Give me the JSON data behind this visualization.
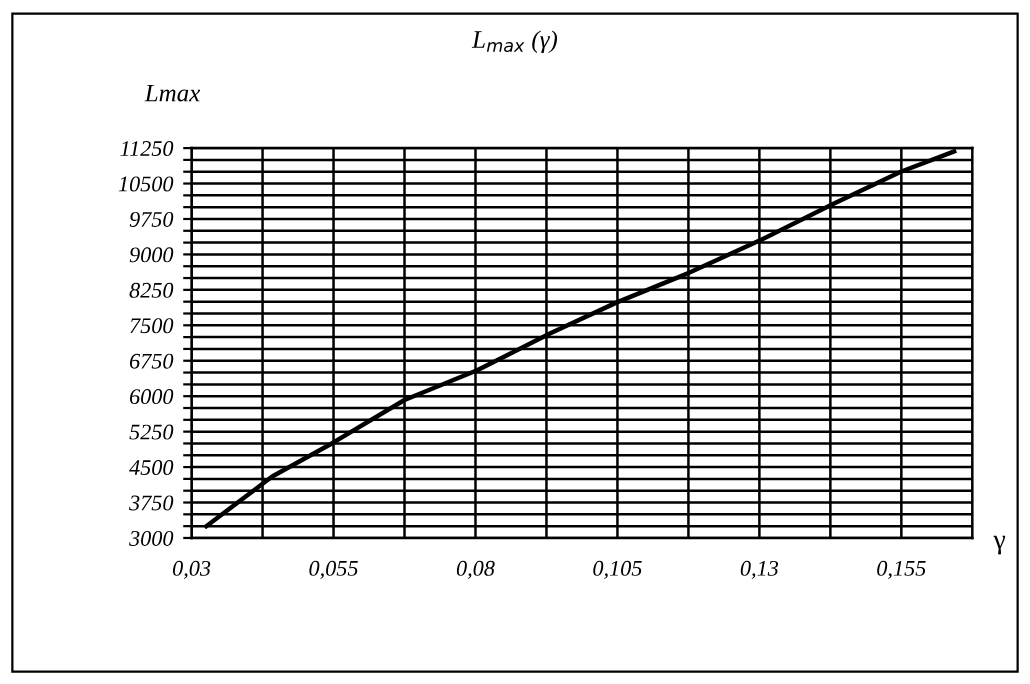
{
  "chart_data": {
    "type": "line",
    "title": "L$_{max}$ (γ)",
    "ylabel": "Lmax",
    "xlabel": "γ",
    "x": [
      0.0326,
      0.0442,
      0.0547,
      0.0675,
      0.0803,
      0.0932,
      0.1048,
      0.1176,
      0.1305,
      0.1427,
      0.1549,
      0.1643
    ],
    "series": [
      {
        "color": "#000000",
        "values": [
          3250,
          4300,
          5000,
          5920,
          6550,
          7330,
          7980,
          8610,
          9320,
          10050,
          10750,
          11180
        ]
      }
    ],
    "xlim": [
      0.03,
      0.1675
    ],
    "xticks": [
      {
        "value": 0.03,
        "label": "0,03"
      },
      {
        "value": 0.0425,
        "label": null
      },
      {
        "value": 0.055,
        "label": "0,055"
      },
      {
        "value": 0.0675,
        "label": null
      },
      {
        "value": 0.08,
        "label": "0,08"
      },
      {
        "value": 0.0925,
        "label": null
      },
      {
        "value": 0.105,
        "label": "0,105"
      },
      {
        "value": 0.1175,
        "label": null
      },
      {
        "value": 0.13,
        "label": "0,13"
      },
      {
        "value": 0.1425,
        "label": null
      },
      {
        "value": 0.155,
        "label": "0,155"
      }
    ],
    "ylim": [
      3000,
      11250
    ],
    "yticks": [
      3000,
      {
        "value": 3250,
        "label": null
      },
      {
        "value": 3500,
        "label": null
      },
      3750,
      {
        "value": 4000,
        "label": null
      },
      {
        "value": 4250,
        "label": null
      },
      4500,
      {
        "value": 4750,
        "label": null
      },
      {
        "value": 5000,
        "label": null
      },
      5250,
      {
        "value": 5500,
        "label": null
      },
      {
        "value": 5750,
        "label": null
      },
      6000,
      {
        "value": 6250,
        "label": null
      },
      {
        "value": 6500,
        "label": null
      },
      6750,
      {
        "value": 7000,
        "label": null
      },
      {
        "value": 7250,
        "label": null
      },
      7500,
      {
        "value": 7750,
        "label": null
      },
      {
        "value": 8000,
        "label": null
      },
      8250,
      {
        "value": 8500,
        "label": null
      },
      {
        "value": 8750,
        "label": null
      },
      9000,
      {
        "value": 9250,
        "label": null
      },
      {
        "value": 9500,
        "label": null
      },
      9750,
      {
        "value": 10000,
        "label": null
      },
      {
        "value": 10250,
        "label": null
      },
      10500,
      {
        "value": 10750,
        "label": null
      },
      {
        "value": 11000,
        "label": null
      },
      11250
    ],
    "grid": true,
    "marker": "none",
    "line_style": "solid",
    "legend": false
  }
}
